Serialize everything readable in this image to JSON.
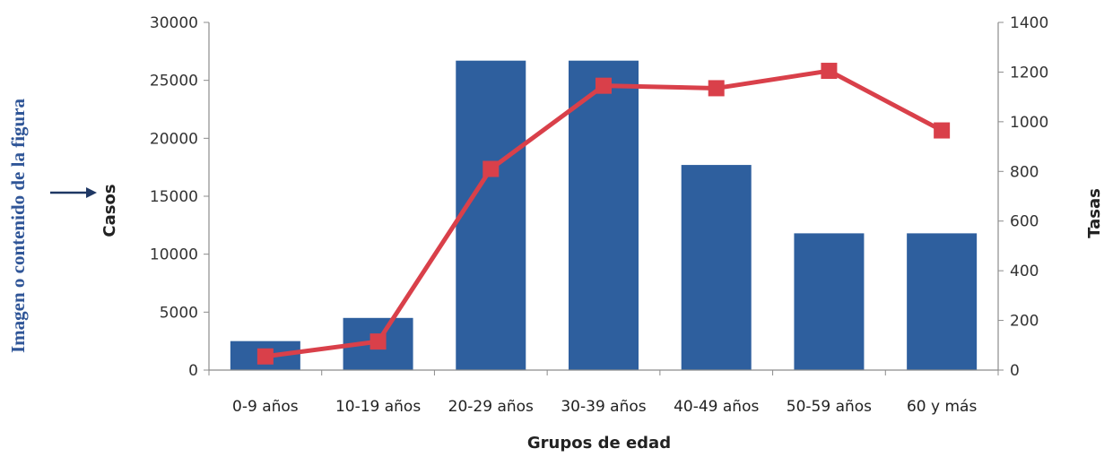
{
  "annotation": {
    "text": "Imagen o contenido de la figura",
    "color": "#2f5597"
  },
  "chart_data": {
    "type": "bar+line",
    "categories": [
      "0-9 años",
      "10-19 años",
      "20-29 años",
      "30-39 años",
      "40-49 años",
      "50-59 años",
      "60 y más"
    ],
    "xlabel": "Grupos de edad",
    "ylabel": "Casos",
    "y2label": "Tasas",
    "ylim": [
      0,
      30000
    ],
    "yticks": [
      0,
      5000,
      10000,
      15000,
      20000,
      25000,
      30000
    ],
    "y2lim": [
      0,
      1400
    ],
    "y2ticks": [
      0,
      200,
      400,
      600,
      800,
      1000,
      1200,
      1400
    ],
    "grid": false,
    "series": [
      {
        "kind": "bar",
        "axis": "left",
        "color": "#2e5f9e",
        "values": [
          2500,
          4500,
          26700,
          26700,
          17700,
          11800,
          11800
        ]
      },
      {
        "kind": "line",
        "axis": "right",
        "color": "#d9404a",
        "marker": "square",
        "values": [
          55,
          115,
          810,
          1145,
          1135,
          1205,
          965
        ]
      }
    ]
  }
}
